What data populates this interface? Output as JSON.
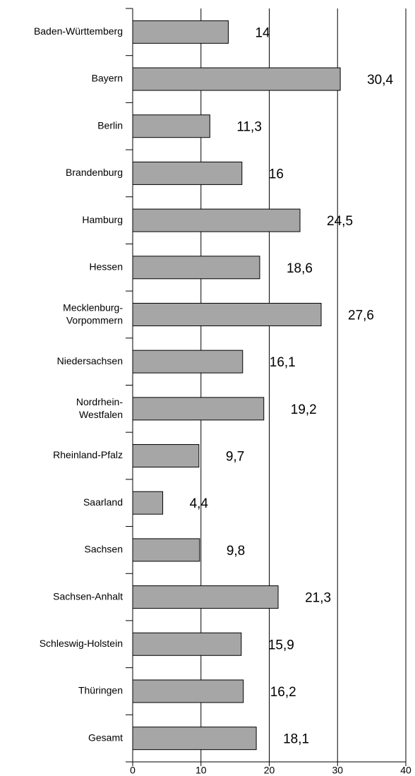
{
  "chart_data": {
    "type": "hbar",
    "categories": [
      "Baden-Württemberg",
      "Bayern",
      "Berlin",
      "Brandenburg",
      "Hamburg",
      "Hessen",
      "Mecklenburg-Vorpommern",
      "Niedersachsen",
      "Nordrhein-Westfalen",
      "Rheinland-Pfalz",
      "Saarland",
      "Sachsen",
      "Sachsen-Anhalt",
      "Schleswig-Holstein",
      "Thüringen",
      "Gesamt"
    ],
    "values": [
      14,
      30.4,
      11.3,
      16,
      24.5,
      18.6,
      27.6,
      16.1,
      19.2,
      9.7,
      4.4,
      9.8,
      21.3,
      15.9,
      16.2,
      18.1
    ],
    "value_labels": [
      "14",
      "30,4",
      "11,3",
      "16",
      "24,5",
      "18,6",
      "27,6",
      "16,1",
      "19,2",
      "9,7",
      "4,4",
      "9,8",
      "21,3",
      "15,9",
      "16,2",
      "18,1"
    ],
    "color": "#a6a6a6",
    "xlim": [
      0,
      40
    ],
    "xticks": [
      0,
      10,
      20,
      30,
      40
    ],
    "grid": true
  }
}
